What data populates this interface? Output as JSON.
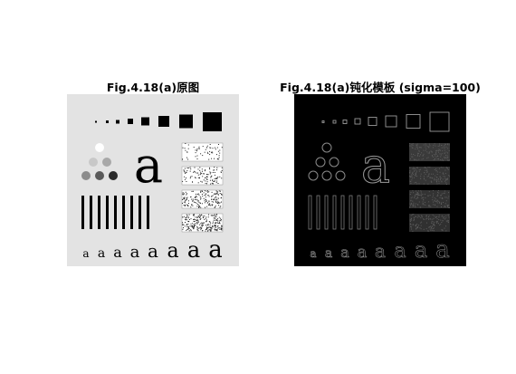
{
  "figures": {
    "left": {
      "title": "Fig.4.18(a)原图",
      "letter": "a"
    },
    "right": {
      "title": "Fig.4.18(a)钝化模板 (sigma=100)",
      "letter": "a"
    }
  },
  "colors": {
    "page_background": "#ffffff",
    "left_background": "#e3e3e3",
    "left_foreground": "#000000",
    "right_background": "#000000",
    "right_edges": "#8a8a8a"
  }
}
